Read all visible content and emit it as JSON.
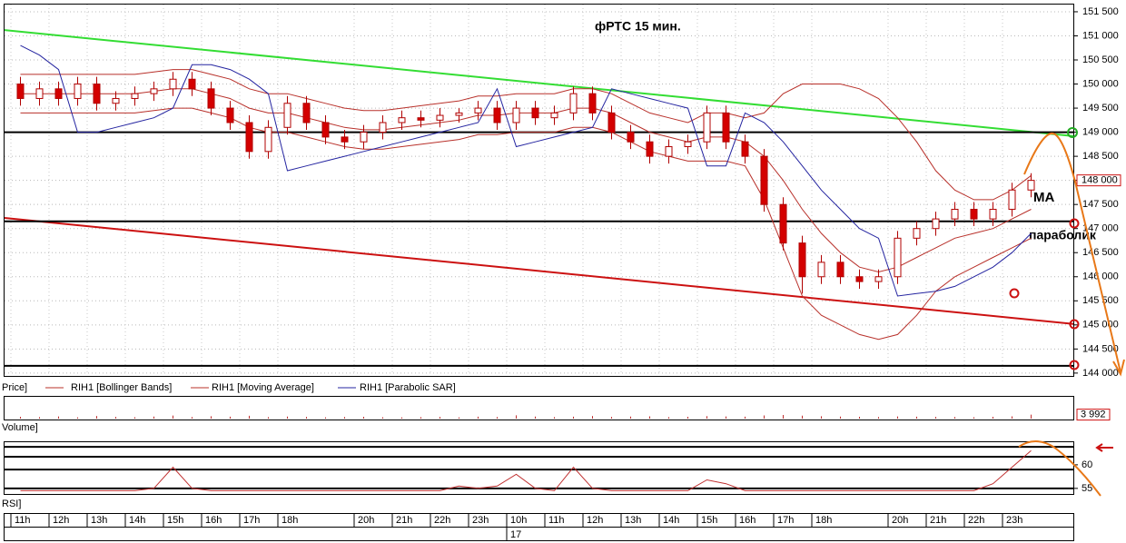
{
  "chart_data": [
    {
      "type": "candlestick",
      "title": "фРТС   15 мин.",
      "price_label": "Price]",
      "annotations": [
        "MA",
        "параболик"
      ],
      "categories": [
        "11h",
        null,
        "12h",
        null,
        "13h",
        null,
        "14h",
        null,
        "15h",
        null,
        "16h",
        null,
        "17h",
        null,
        "18h",
        null,
        null,
        null,
        "20h",
        null,
        "21h",
        null,
        "22h",
        null,
        "23h",
        null,
        "10h",
        null,
        "11h",
        null,
        "12h",
        null,
        "13h",
        null,
        "14h",
        null,
        "15h",
        null,
        "16h",
        null,
        "17h",
        null,
        "18h",
        null,
        null,
        null,
        "20h",
        null,
        "21h",
        null,
        "22h",
        null,
        "23h",
        null,
        null,
        null
      ],
      "date_label": "17",
      "open": [
        150000,
        149700,
        149900,
        149700,
        150000,
        149600,
        149700,
        149800,
        149900,
        150100,
        149900,
        149500,
        149200,
        148600,
        149100,
        149600,
        149200,
        148900,
        148800,
        149000,
        149200,
        149300,
        149250,
        149350,
        149400,
        149500,
        149200,
        149500,
        149300,
        149400,
        149800,
        149400,
        149000,
        148800,
        148500,
        148700,
        148800,
        149400,
        148800,
        148500,
        147500,
        146700,
        146000,
        146300,
        146000,
        145900,
        146000,
        146800,
        147000,
        147200,
        147400,
        147200,
        147400,
        147800,
        null,
        null
      ],
      "high": [
        150150,
        150050,
        150050,
        150150,
        150150,
        149850,
        149950,
        150050,
        150250,
        150250,
        150050,
        149650,
        149350,
        149250,
        149750,
        149750,
        149350,
        149050,
        149150,
        149350,
        149450,
        149450,
        149500,
        149500,
        149650,
        149650,
        149650,
        149650,
        149550,
        149950,
        149950,
        149550,
        149150,
        148950,
        148850,
        148950,
        149550,
        149550,
        148950,
        148650,
        147650,
        146850,
        146450,
        146450,
        146150,
        146150,
        146950,
        147150,
        147350,
        147550,
        147550,
        147550,
        147950,
        148150,
        null,
        null
      ],
      "low": [
        149550,
        149550,
        149550,
        149550,
        149450,
        149450,
        149550,
        149650,
        149750,
        149750,
        149350,
        149050,
        148450,
        148450,
        148950,
        149050,
        148750,
        148650,
        148650,
        148850,
        149050,
        149100,
        149100,
        149200,
        149250,
        149050,
        149050,
        149150,
        149150,
        149250,
        149250,
        148850,
        148650,
        148350,
        148350,
        148550,
        148650,
        148650,
        148350,
        147350,
        146550,
        145650,
        145850,
        145850,
        145750,
        145750,
        145850,
        146650,
        146850,
        147050,
        147050,
        147050,
        147250,
        147650,
        null,
        null
      ],
      "close": [
        149700,
        149900,
        149700,
        150000,
        149600,
        149700,
        149800,
        149900,
        150100,
        149900,
        149500,
        149200,
        148600,
        149100,
        149600,
        149200,
        148900,
        148800,
        149000,
        149200,
        149300,
        149250,
        149350,
        149400,
        149500,
        149200,
        149500,
        149300,
        149400,
        149800,
        149400,
        149000,
        148800,
        148500,
        148700,
        148800,
        149400,
        148800,
        148500,
        147500,
        146700,
        146000,
        146300,
        146000,
        145900,
        146000,
        146800,
        147000,
        147200,
        147400,
        147200,
        147400,
        147800,
        148000,
        null,
        null
      ],
      "up_color": "#ffffff",
      "down_color": "#d40000",
      "edge_color": "#b00000",
      "series": [
        {
          "name": "RIH1 [Bollinger Bands]",
          "color": "#b8302a",
          "upper": [
            150200,
            150200,
            150200,
            150200,
            150200,
            150200,
            150200,
            150250,
            150300,
            150300,
            150200,
            150100,
            149900,
            149800,
            149800,
            149700,
            149600,
            149500,
            149450,
            149450,
            149500,
            149550,
            149600,
            149650,
            149750,
            149750,
            149800,
            149800,
            149800,
            149900,
            149900,
            149800,
            149600,
            149400,
            149300,
            149200,
            149400,
            149400,
            149300,
            149400,
            149800,
            150000,
            150000,
            150000,
            149900,
            149700,
            149300,
            148800,
            148200,
            147800,
            147600,
            147600,
            147800,
            148100,
            null,
            null
          ],
          "lower": [
            149400,
            149400,
            149400,
            149400,
            149400,
            149400,
            149400,
            149450,
            149500,
            149500,
            149400,
            149300,
            149100,
            149000,
            149000,
            148900,
            148800,
            148700,
            148650,
            148650,
            148700,
            148750,
            148800,
            148850,
            148950,
            148950,
            149000,
            149000,
            149000,
            149100,
            149100,
            149000,
            148800,
            148600,
            148500,
            148400,
            148400,
            148400,
            148300,
            147600,
            146600,
            145600,
            145200,
            145000,
            144800,
            144700,
            144800,
            145200,
            145700,
            146000,
            146200,
            146400,
            146600,
            146800,
            null,
            null
          ]
        },
        {
          "name": "RIH1 [Moving Average]",
          "color": "#b8302a",
          "values": [
            149800,
            149800,
            149800,
            149800,
            149800,
            149800,
            149800,
            149850,
            149900,
            149900,
            149800,
            149700,
            149500,
            149400,
            149400,
            149300,
            149200,
            149100,
            149050,
            149050,
            149100,
            149150,
            149200,
            149250,
            149350,
            149350,
            149400,
            149400,
            149400,
            149500,
            149500,
            149400,
            149200,
            149000,
            148900,
            148800,
            148900,
            148900,
            148800,
            148500,
            148000,
            147400,
            146900,
            146500,
            146200,
            146100,
            146200,
            146400,
            146600,
            146800,
            146900,
            147000,
            147200,
            147400,
            null,
            null
          ]
        },
        {
          "name": "RIH1 [Parabolic SAR]",
          "color": "#2424a0",
          "values": [
            150800,
            150600,
            150300,
            149000,
            149000,
            149100,
            149200,
            149300,
            149500,
            150400,
            150400,
            150300,
            150100,
            149800,
            148200,
            148300,
            148400,
            148500,
            148600,
            148700,
            148800,
            148900,
            149000,
            149100,
            149200,
            149900,
            148700,
            148800,
            148900,
            149000,
            149100,
            149900,
            149800,
            149700,
            149600,
            149500,
            148300,
            148300,
            149400,
            149200,
            148800,
            148300,
            147800,
            147400,
            147000,
            146800,
            145600,
            145650,
            145700,
            145800,
            146000,
            146200,
            146500,
            146900,
            null,
            null
          ]
        }
      ],
      "lines": [
        {
          "color": "#33dd33",
          "values": [
            151120,
            148920
          ]
        },
        {
          "color": "#cc1111",
          "values": [
            147220,
            145020
          ]
        },
        {
          "color": "#000000",
          "values": [
            149000,
            149000
          ]
        },
        {
          "color": "#000000",
          "values": [
            147150,
            147150
          ]
        },
        {
          "color": "#000000",
          "values": [
            144150,
            144150
          ]
        }
      ],
      "last_price": {
        "value": 148000,
        "label": "148 000"
      },
      "ylim": [
        143960,
        151650
      ],
      "yticks": [
        {
          "value": 144000,
          "label": "144 000"
        },
        {
          "value": 144500,
          "label": "144 500"
        },
        {
          "value": 145000,
          "label": "145 000"
        },
        {
          "value": 145500,
          "label": "145 500"
        },
        {
          "value": 146000,
          "label": "146 000"
        },
        {
          "value": 146500,
          "label": "146 500"
        },
        {
          "value": 147000,
          "label": "147 000"
        },
        {
          "value": 147500,
          "label": "147 500"
        },
        {
          "value": 148000,
          "label": "148 000"
        },
        {
          "value": 148500,
          "label": "148 500"
        },
        {
          "value": 149000,
          "label": "149 000"
        },
        {
          "value": 149500,
          "label": "149 500"
        },
        {
          "value": 150000,
          "label": "150 000"
        },
        {
          "value": 150500,
          "label": "150 500"
        },
        {
          "value": 151000,
          "label": "151 000"
        },
        {
          "value": 151500,
          "label": "151 500"
        }
      ],
      "grid": true
    },
    {
      "type": "bar",
      "title": "Volume]",
      "color": "#c03030",
      "values": [
        1800,
        1500,
        2200,
        1300,
        2600,
        1700,
        1400,
        2000,
        3100,
        1600,
        2400,
        1900,
        2800,
        1500,
        2100,
        1700,
        1300,
        1600,
        1800,
        1400,
        1200,
        1500,
        1700,
        1300,
        1900,
        1600,
        3300,
        2100,
        1500,
        1900,
        2600,
        1700,
        2000,
        2300,
        1500,
        1800,
        2500,
        2200,
        1900,
        3200,
        3600,
        2900,
        2400,
        2100,
        1800,
        1600,
        2200,
        1900,
        1700,
        1600,
        1400,
        1800,
        2300,
        3992,
        null,
        null
      ],
      "last": {
        "value": 3992,
        "label": "3 992"
      },
      "ylim": [
        0,
        20000
      ]
    },
    {
      "type": "line",
      "title": "RSI]",
      "color": "#c03030",
      "values": [
        54.5,
        54.5,
        54.5,
        54.5,
        54.5,
        54.5,
        54.5,
        55,
        59.5,
        55,
        54.5,
        54.5,
        54.5,
        54.5,
        54.5,
        54.5,
        54.5,
        54.5,
        54.5,
        54.5,
        54.5,
        54.5,
        54.5,
        55.5,
        55,
        55.5,
        58,
        55,
        54.5,
        59.5,
        55,
        54.5,
        54.5,
        54.5,
        54.5,
        54.5,
        56.8,
        56,
        54.5,
        54.5,
        54.5,
        54.5,
        54.5,
        54.5,
        54.5,
        54.5,
        54.5,
        54.5,
        54.5,
        54.5,
        54.5,
        56,
        59.5,
        63,
        null,
        null
      ],
      "levels": [
        63.8,
        61.7,
        59,
        55
      ],
      "ylim": [
        54.2,
        64.6
      ],
      "yticks": [
        55,
        60
      ]
    }
  ]
}
